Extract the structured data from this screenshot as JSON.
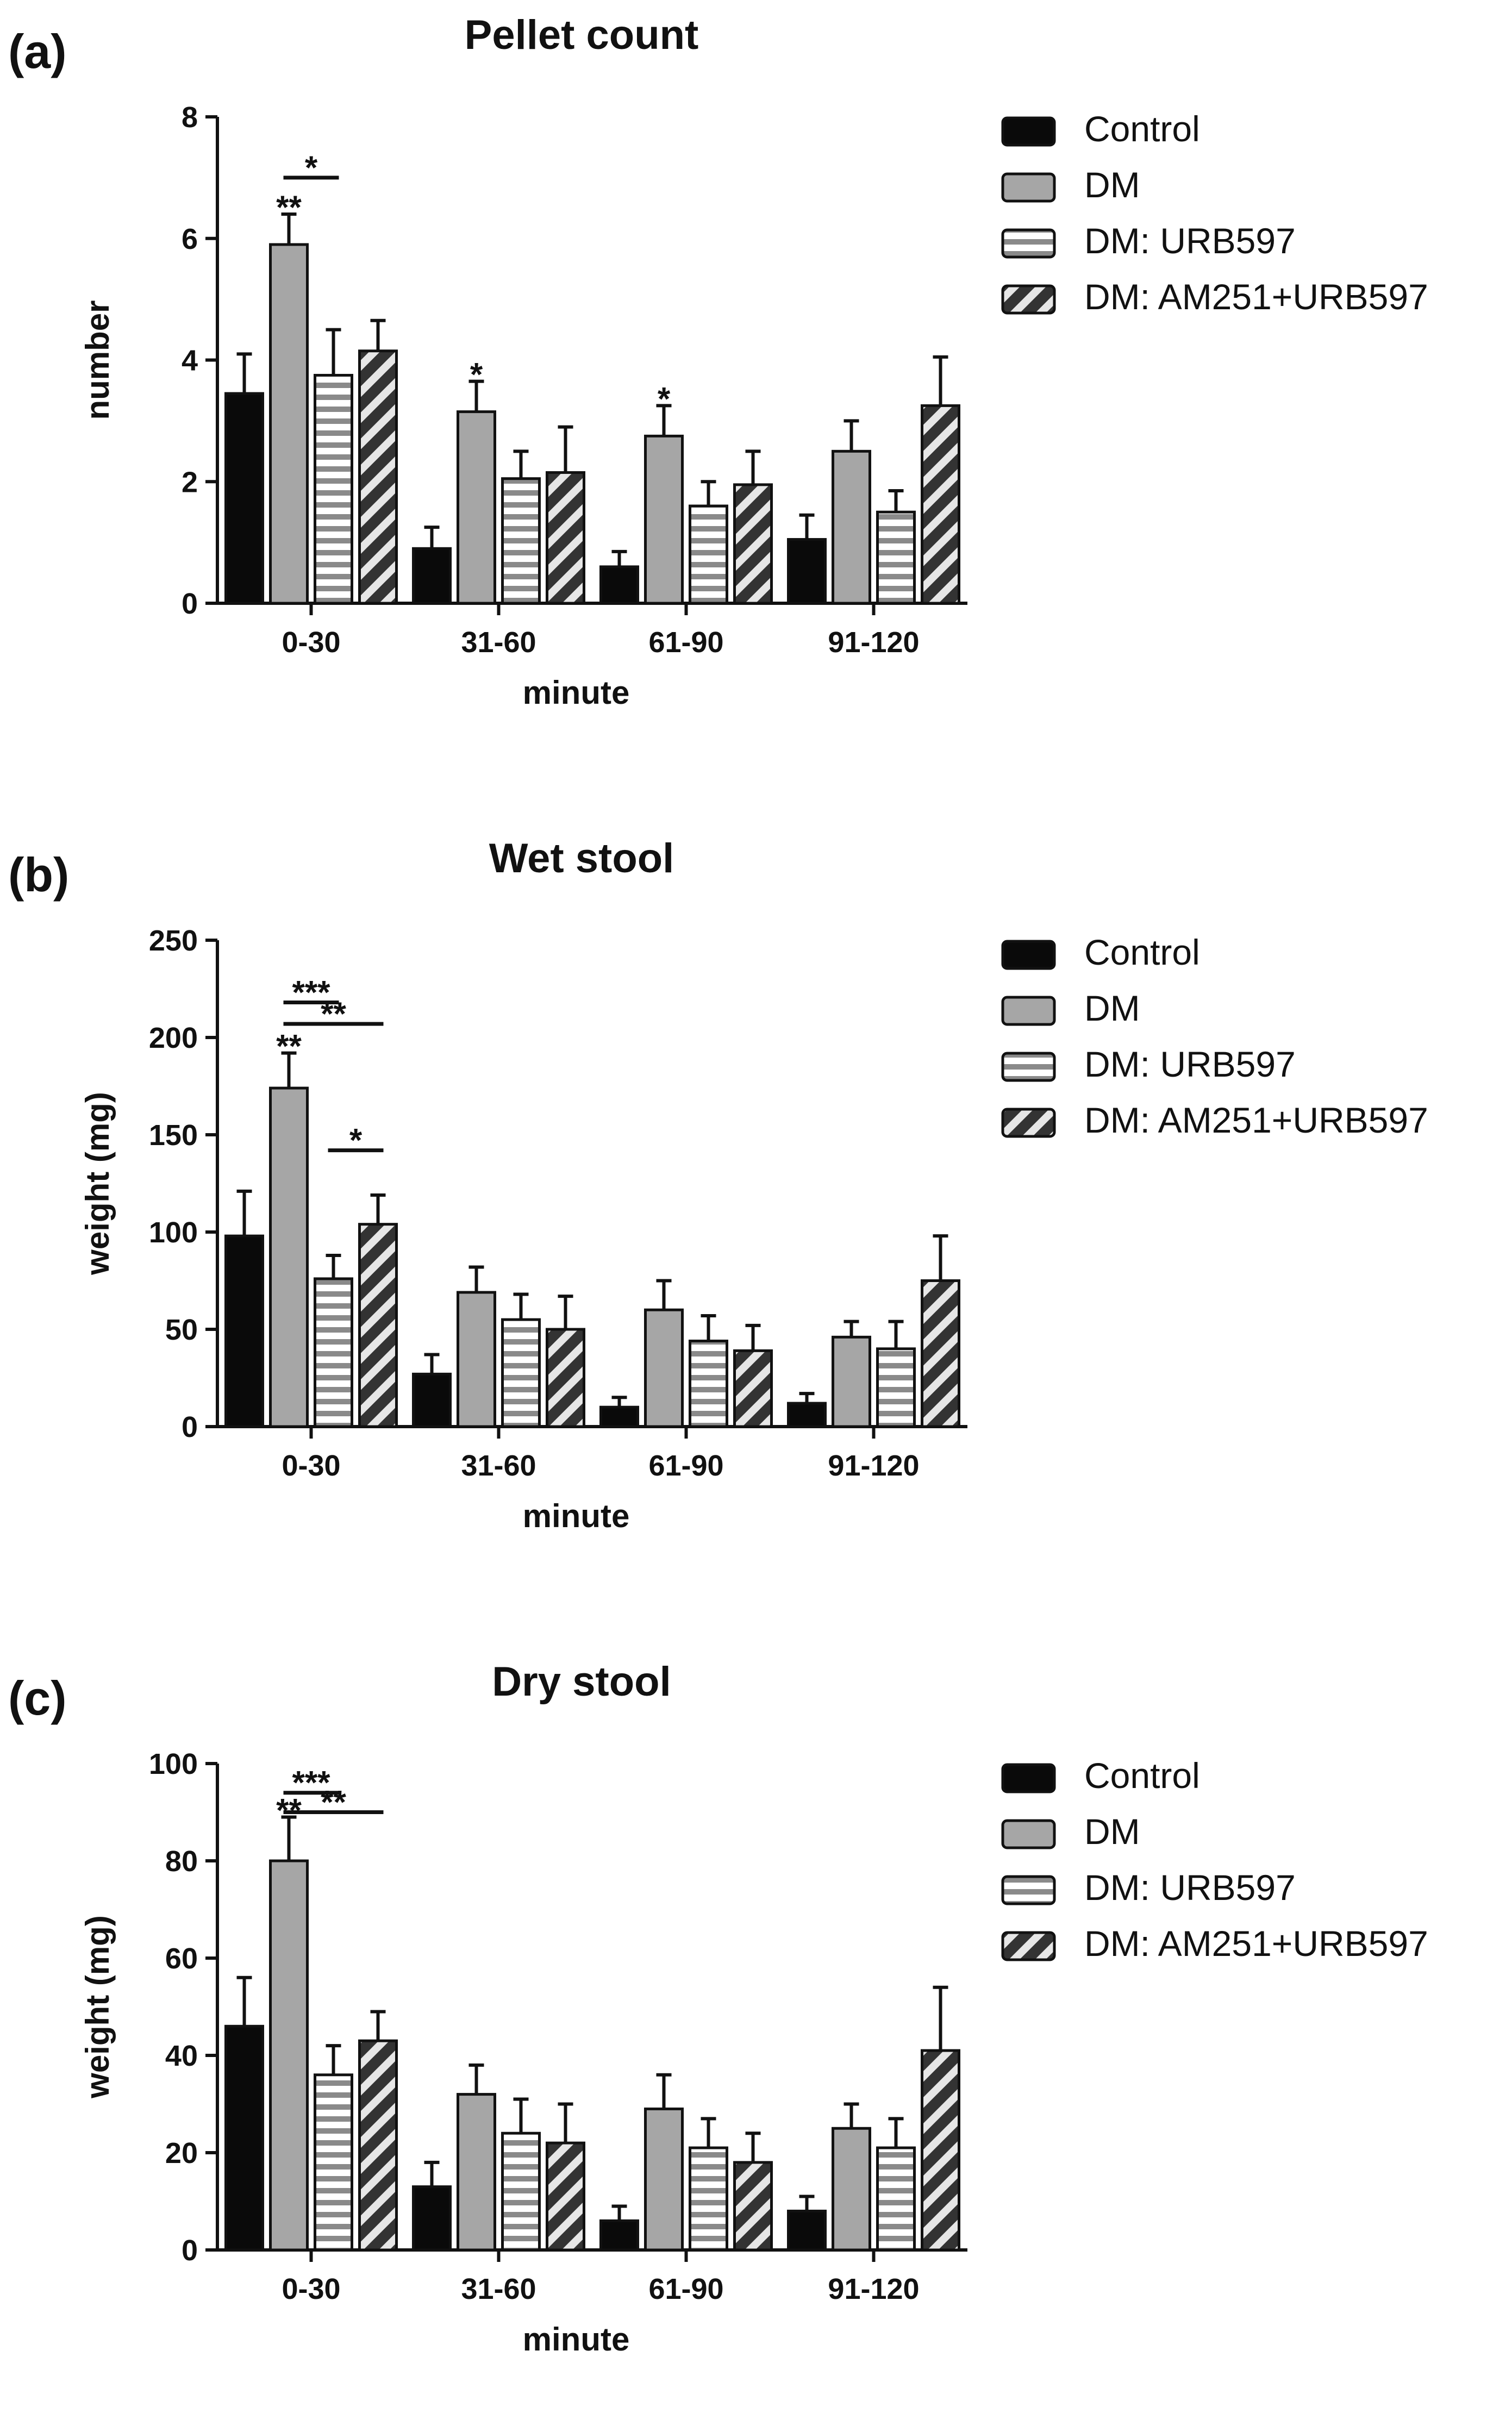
{
  "figure": {
    "panels": [
      {
        "label": "(a)"
      },
      {
        "label": "(b)"
      },
      {
        "label": "(c)"
      }
    ]
  },
  "colors": {
    "Control": "#0a0a0a",
    "DM": "#a6a6a6",
    "DM: URB597": "#ffffff",
    "DM: AM251+URB597": "#6e6e6e"
  },
  "chart_data": [
    {
      "type": "bar",
      "title": "Pellet count",
      "xlabel": "minute",
      "ylabel": "number",
      "ylim": [
        0,
        8
      ],
      "yticks": [
        0,
        2,
        4,
        6,
        8
      ],
      "categories": [
        "0-30",
        "31-60",
        "61-90",
        "91-120"
      ],
      "legend": [
        "Control",
        "DM",
        "DM: URB597",
        "DM: AM251+URB597"
      ],
      "series": [
        {
          "name": "Control",
          "values": [
            3.45,
            0.9,
            0.6,
            1.05
          ],
          "errors": [
            0.65,
            0.35,
            0.25,
            0.4
          ]
        },
        {
          "name": "DM",
          "values": [
            5.9,
            3.15,
            2.75,
            2.5
          ],
          "errors": [
            0.5,
            0.5,
            0.5,
            0.5
          ]
        },
        {
          "name": "DM: URB597",
          "values": [
            3.75,
            2.05,
            1.6,
            1.5
          ],
          "errors": [
            0.75,
            0.45,
            0.4,
            0.35
          ]
        },
        {
          "name": "DM: AM251+URB597",
          "values": [
            4.15,
            2.15,
            1.95,
            3.25
          ],
          "errors": [
            0.5,
            0.75,
            0.55,
            0.8
          ]
        }
      ],
      "annotations": [
        {
          "text": "**",
          "category": 0,
          "series": 1
        },
        {
          "text": "*",
          "category": 1,
          "series": 1
        },
        {
          "text": "*",
          "category": 2,
          "series": 1
        }
      ],
      "brackets": [
        {
          "text": "*",
          "category": 0,
          "from": 1,
          "to": 2,
          "value": 7.0
        }
      ]
    },
    {
      "type": "bar",
      "title": "Wet stool",
      "xlabel": "minute",
      "ylabel": "weight (mg)",
      "ylim": [
        0,
        250
      ],
      "yticks": [
        0,
        50,
        100,
        150,
        200,
        250
      ],
      "categories": [
        "0-30",
        "31-60",
        "61-90",
        "91-120"
      ],
      "legend": [
        "Control",
        "DM",
        "DM: URB597",
        "DM: AM251+URB597"
      ],
      "series": [
        {
          "name": "Control",
          "values": [
            98,
            27,
            10,
            12
          ],
          "errors": [
            23,
            10,
            5,
            5
          ]
        },
        {
          "name": "DM",
          "values": [
            174,
            69,
            60,
            46
          ],
          "errors": [
            18,
            13,
            15,
            8
          ]
        },
        {
          "name": "DM: URB597",
          "values": [
            76,
            55,
            44,
            40
          ],
          "errors": [
            12,
            13,
            13,
            14
          ]
        },
        {
          "name": "DM: AM251+URB597",
          "values": [
            104,
            50,
            39,
            75
          ],
          "errors": [
            15,
            17,
            13,
            23
          ]
        }
      ],
      "annotations": [
        {
          "text": "**",
          "category": 0,
          "series": 1
        }
      ],
      "brackets": [
        {
          "text": "***",
          "category": 0,
          "from": 1,
          "to": 2,
          "value": 218
        },
        {
          "text": "**",
          "category": 0,
          "from": 1,
          "to": 3,
          "value": 207
        },
        {
          "text": "*",
          "category": 0,
          "from": 2,
          "to": 3,
          "value": 142
        }
      ]
    },
    {
      "type": "bar",
      "title": "Dry stool",
      "xlabel": "minute",
      "ylabel": "weight (mg)",
      "ylim": [
        0,
        100
      ],
      "yticks": [
        0,
        20,
        40,
        60,
        80,
        100
      ],
      "categories": [
        "0-30",
        "31-60",
        "61-90",
        "91-120"
      ],
      "legend": [
        "Control",
        "DM",
        "DM: URB597",
        "DM: AM251+URB597"
      ],
      "series": [
        {
          "name": "Control",
          "values": [
            46,
            13,
            6,
            8
          ],
          "errors": [
            10,
            5,
            3,
            3
          ]
        },
        {
          "name": "DM",
          "values": [
            80,
            32,
            29,
            25
          ],
          "errors": [
            9,
            6,
            7,
            5
          ]
        },
        {
          "name": "DM: URB597",
          "values": [
            36,
            24,
            21,
            21
          ],
          "errors": [
            6,
            7,
            6,
            6
          ]
        },
        {
          "name": "DM: AM251+URB597",
          "values": [
            43,
            22,
            18,
            41
          ],
          "errors": [
            6,
            8,
            6,
            13
          ]
        }
      ],
      "annotations": [
        {
          "text": "**",
          "category": 0,
          "series": 1
        }
      ],
      "brackets": [
        {
          "text": "***",
          "category": 0,
          "from": 1,
          "to": 2,
          "value": 94
        },
        {
          "text": "**",
          "category": 0,
          "from": 1,
          "to": 3,
          "value": 90
        }
      ]
    }
  ]
}
